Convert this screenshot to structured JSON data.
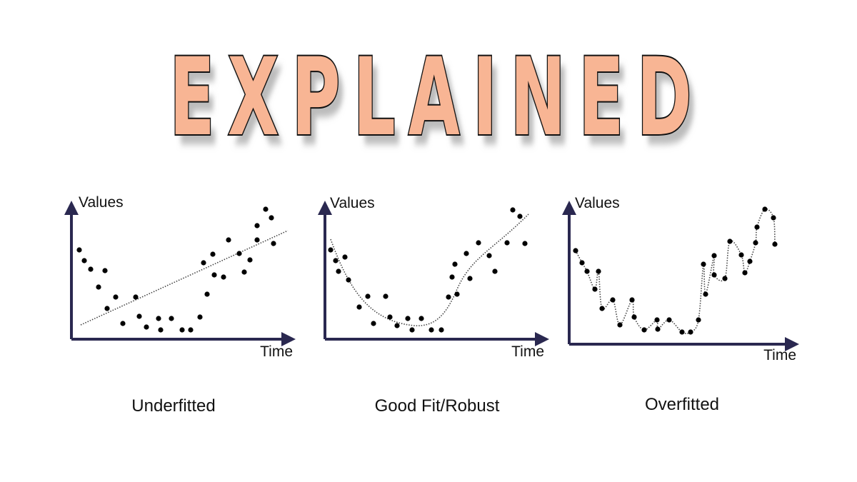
{
  "title": "EXPLAINED",
  "panels": [
    {
      "y_label": "Values",
      "x_label": "Time",
      "caption": "Underfitted"
    },
    {
      "y_label": "Values",
      "x_label": "Time",
      "caption": "Good Fit/Robust"
    },
    {
      "y_label": "Values",
      "x_label": "Time",
      "caption": "Overfitted"
    }
  ]
}
